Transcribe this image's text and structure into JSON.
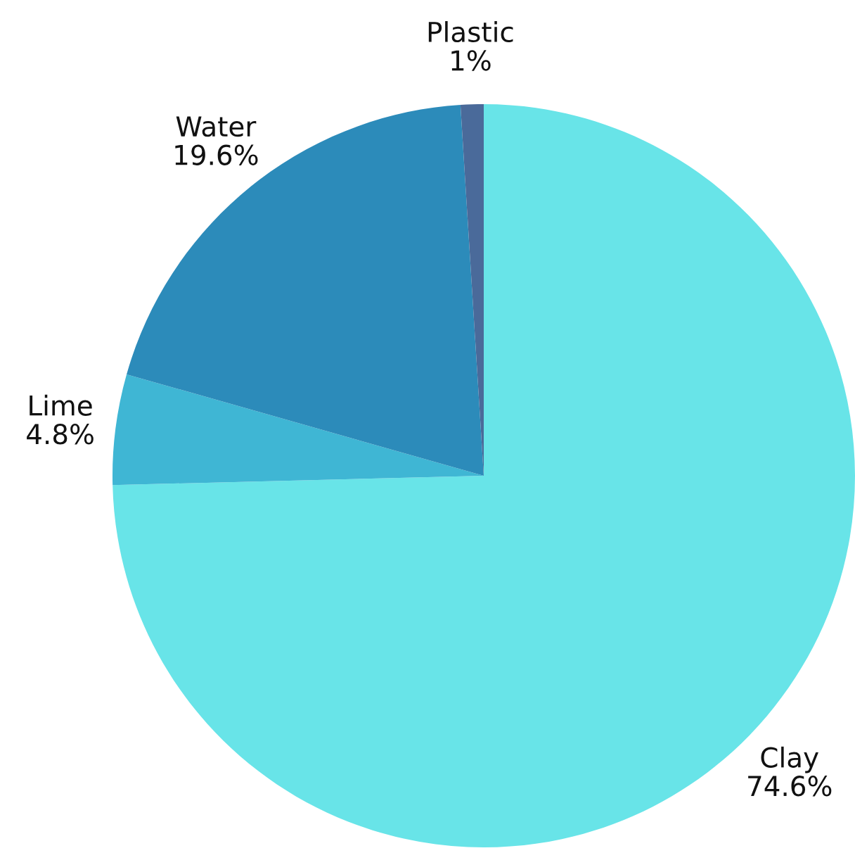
{
  "chart_data": {
    "type": "pie",
    "categories": [
      "Clay",
      "Lime",
      "Water",
      "Plastic"
    ],
    "values": [
      74.6,
      4.8,
      19.6,
      1
    ],
    "colors": [
      "#68e4e8",
      "#3fb6d4",
      "#2c8bba",
      "#4a6a9a"
    ],
    "value_labels": [
      "74.6%",
      "4.8%",
      "19.6%",
      "1%"
    ]
  }
}
